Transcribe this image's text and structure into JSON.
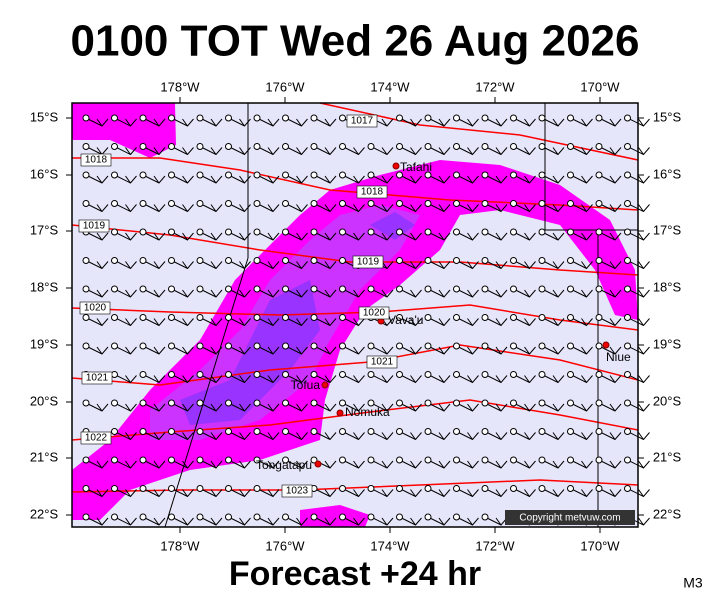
{
  "header": {
    "title": "0100 TOT Wed 26 Aug 2026"
  },
  "map": {
    "lon_labels": [
      "178°W",
      "176°W",
      "174°W",
      "172°W",
      "170°W"
    ],
    "lat_labels": [
      "15°S",
      "16°S",
      "17°S",
      "18°S",
      "19°S",
      "20°S",
      "21°S",
      "22°S"
    ],
    "places": [
      "Tafahi",
      "Vava'u",
      "Niue",
      "Tofua",
      "Nomuka",
      "Tongatapu"
    ],
    "isobar_labels": [
      "1017",
      "1018",
      "1018",
      "1019",
      "1019",
      "1020",
      "1020",
      "1021",
      "1021",
      "1022",
      "1023"
    ],
    "copyright": "Copyright metvuw.com"
  },
  "footer": {
    "forecast": "Forecast +24 hr",
    "code": "M3"
  }
}
